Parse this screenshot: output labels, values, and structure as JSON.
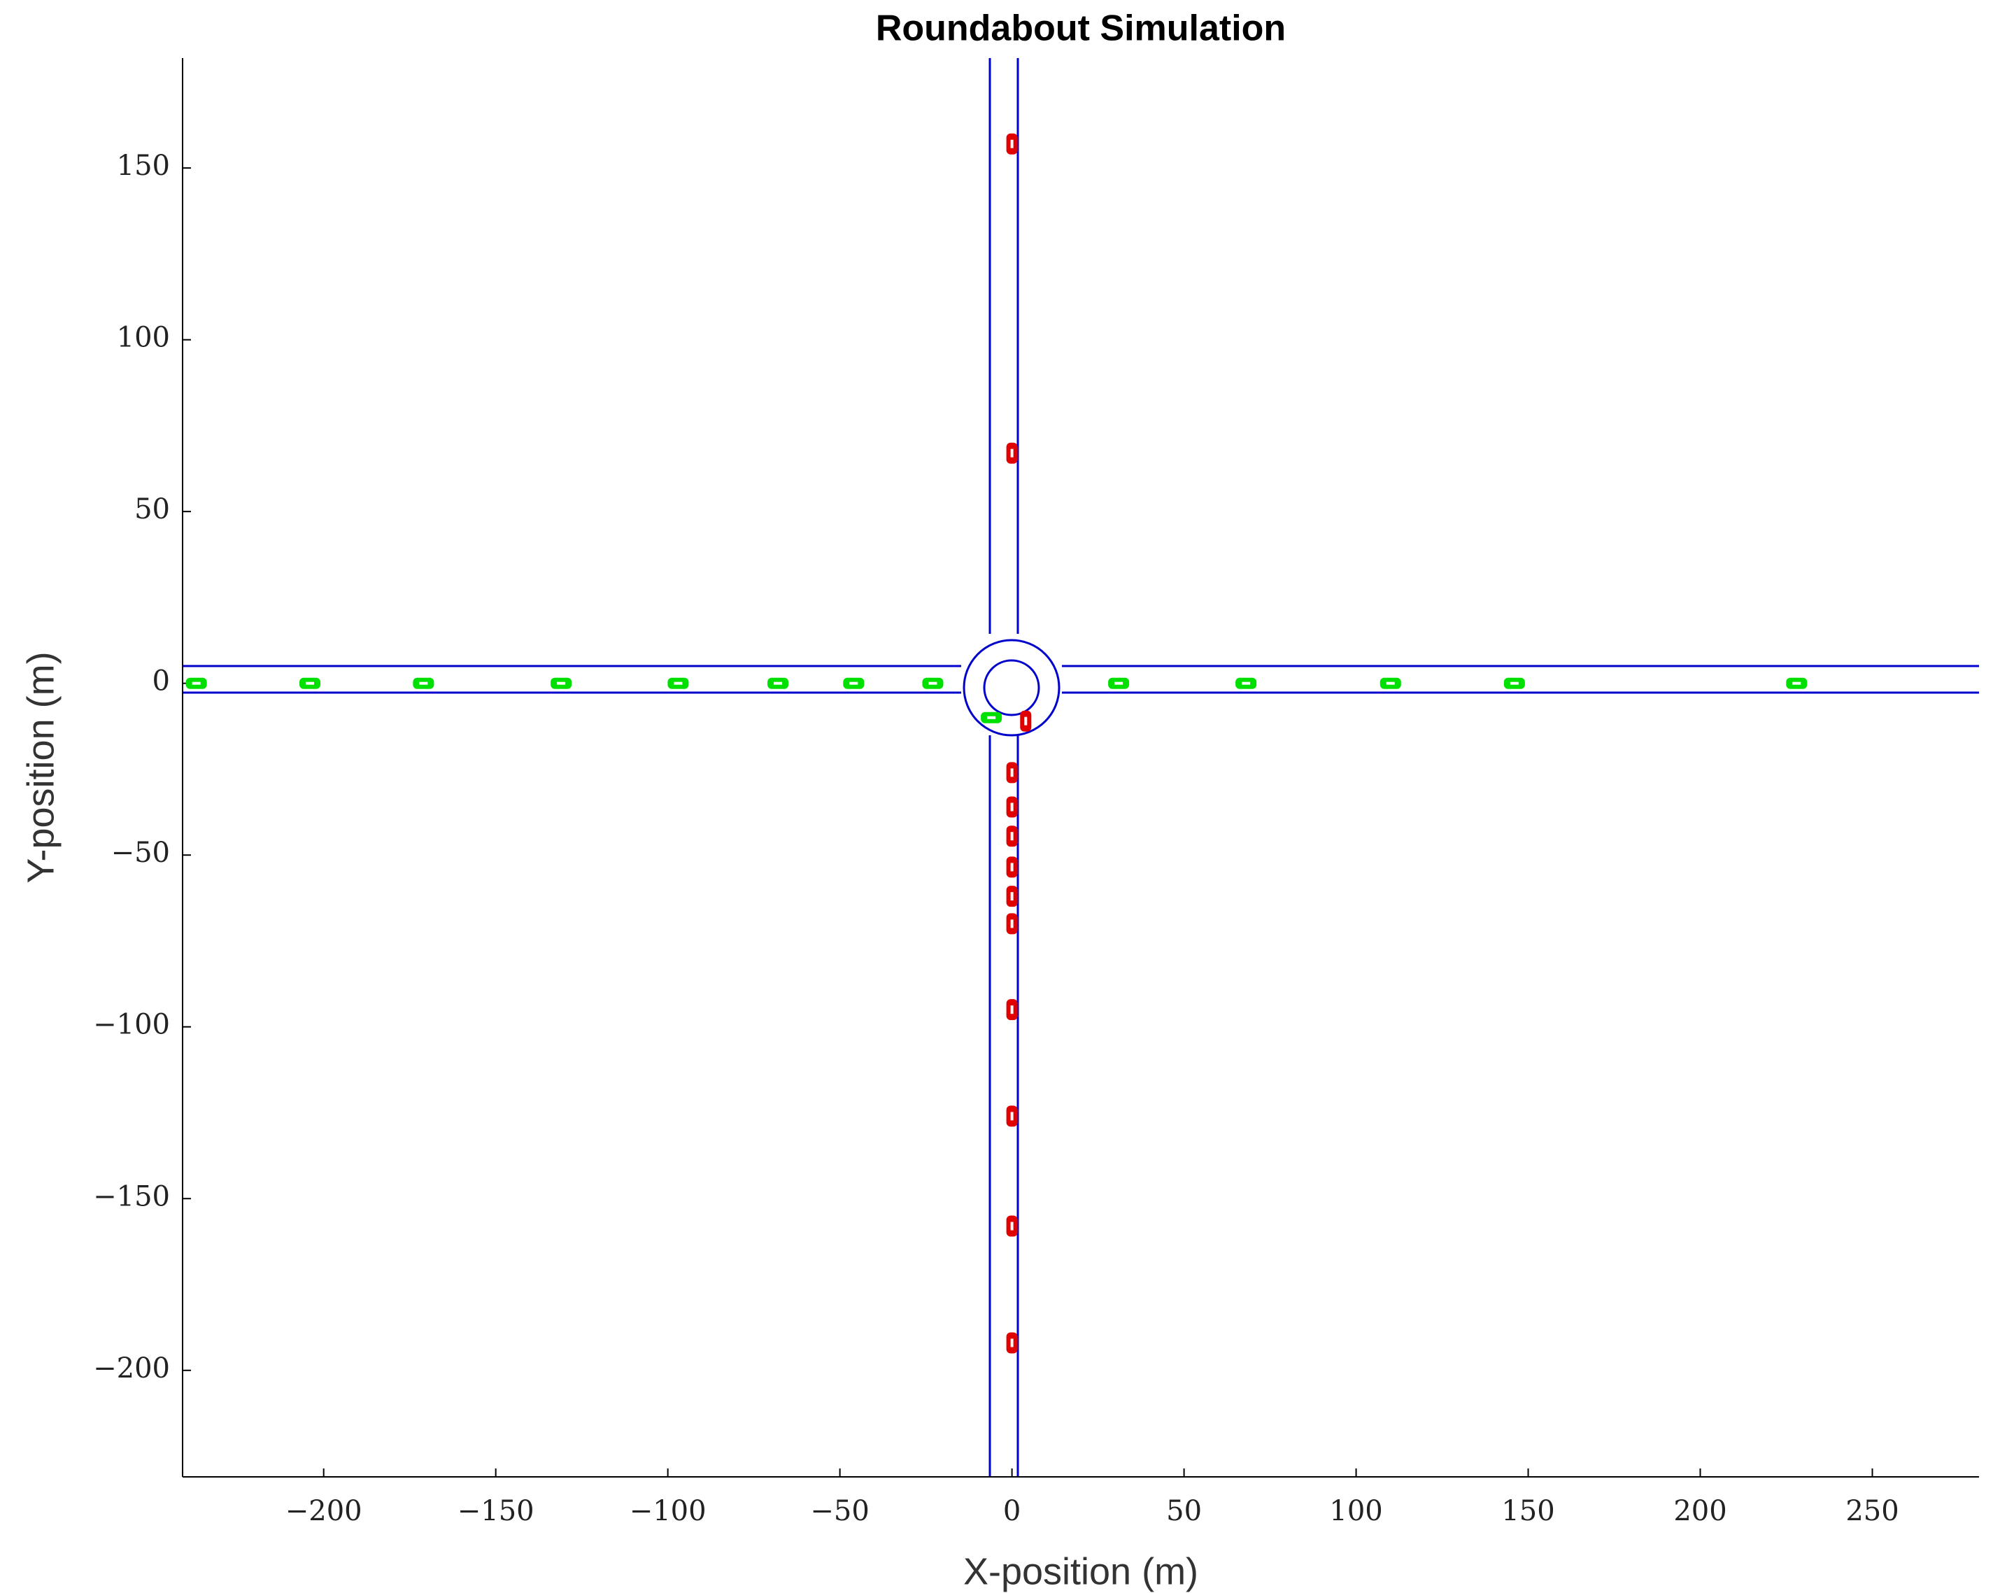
{
  "chart_data": {
    "type": "scatter",
    "title": "Roundabout Simulation",
    "x_label": "X-position (m)",
    "y_label": "Y-position (m)",
    "xlim": [
      -241,
      281
    ],
    "ylim": [
      -231,
      182
    ],
    "xticks": [
      {
        "value": -200,
        "label": "−200"
      },
      {
        "value": -150,
        "label": "−150"
      },
      {
        "value": -100,
        "label": "−100"
      },
      {
        "value": -50,
        "label": "−50"
      },
      0,
      50,
      100,
      150,
      200,
      250
    ],
    "yticks": [
      {
        "value": -200,
        "label": "−200"
      },
      {
        "value": -150,
        "label": "−150"
      },
      {
        "value": -100,
        "label": "−100"
      },
      {
        "value": -50,
        "label": "−50"
      },
      0,
      50,
      100,
      150
    ],
    "series": [
      {
        "color": "#00e000",
        "x": [
          -237,
          -204,
          -171,
          -131,
          -97,
          -68,
          -46,
          -23,
          31,
          68,
          110,
          146,
          228,
          -6
        ],
        "values": [
          0,
          0,
          0,
          0,
          0,
          0,
          0,
          0,
          0,
          0,
          0,
          0,
          0,
          -10
        ]
      },
      {
        "color": "#e00000",
        "x": [
          0,
          0,
          0,
          0,
          0,
          0,
          0,
          0,
          0,
          0,
          0,
          0,
          4
        ],
        "values": [
          157,
          67,
          -26,
          -36,
          -44.5,
          -53.5,
          -62,
          -70,
          -95,
          -126,
          -158,
          -192,
          -11
        ]
      }
    ]
  }
}
